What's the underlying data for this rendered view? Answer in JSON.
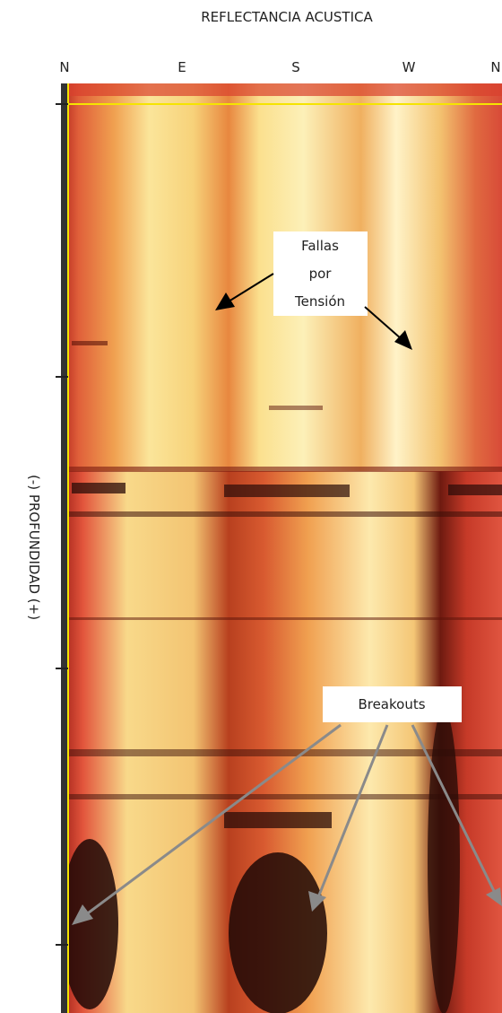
{
  "title": "REFLECTANCIA ACUSTICA",
  "compass": [
    "N",
    "E",
    "S",
    "W",
    "N"
  ],
  "y_axis_label": "(-) PROFUNDIDAD (+)",
  "annotations": {
    "stress_faults": [
      "Fallas",
      "por",
      "Tensión"
    ],
    "breakouts": "Breakouts"
  }
}
